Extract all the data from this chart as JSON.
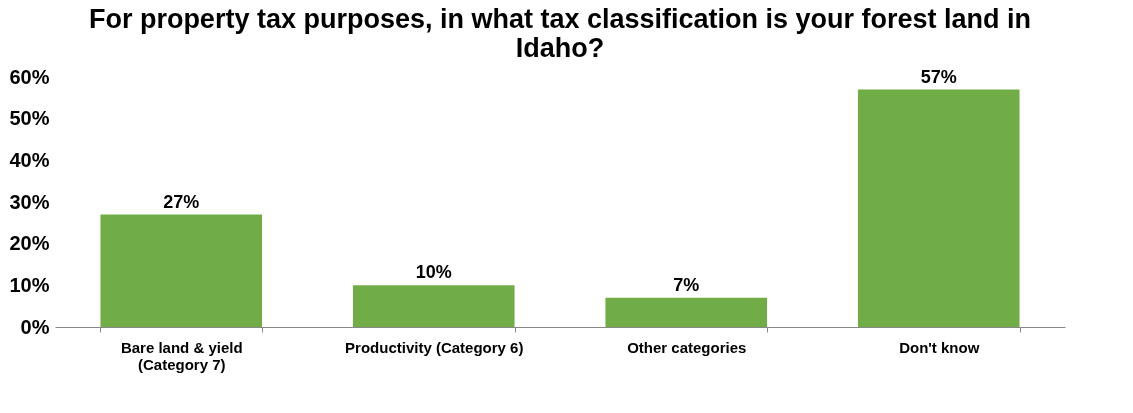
{
  "chart_data": {
    "type": "bar",
    "title": "For property tax purposes, in what tax classification is your forest land in Idaho?",
    "categories": [
      "Bare land & yield (Category 7)",
      "Productivity (Category 6)",
      "Other categories",
      "Don't know"
    ],
    "values": [
      27,
      10,
      7,
      57
    ],
    "value_labels": [
      "27%",
      "10%",
      "7%",
      "57%"
    ],
    "color": "#70ad47",
    "ylim": [
      0,
      60
    ],
    "yticks": [
      {
        "value": 0,
        "label": "0%"
      },
      {
        "value": 10,
        "label": "10%"
      },
      {
        "value": 20,
        "label": "20%"
      },
      {
        "value": 30,
        "label": "30%"
      },
      {
        "value": 40,
        "label": "40%"
      },
      {
        "value": 50,
        "label": "50%"
      },
      {
        "value": 60,
        "label": "60%"
      }
    ],
    "grid": false
  }
}
